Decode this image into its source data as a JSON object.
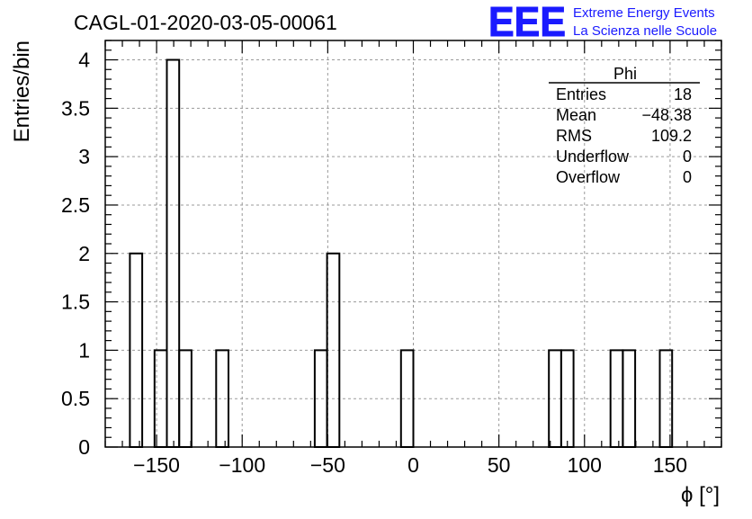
{
  "chart_data": {
    "type": "bar",
    "title": "CAGL-01-2020-03-05-00061",
    "xlabel": "ϕ [°]",
    "ylabel": "Entries/bin",
    "xlim": [
      -180,
      180
    ],
    "ylim": [
      0,
      4.2
    ],
    "grid": true,
    "bin_width": 7.2,
    "x_ticks": [
      -150,
      -100,
      -50,
      0,
      50,
      100,
      150
    ],
    "x_tick_labels": [
      "−150",
      "−100",
      "−50",
      "0",
      "50",
      "100",
      "150"
    ],
    "y_ticks": [
      0,
      0.5,
      1,
      1.5,
      2,
      2.5,
      3,
      3.5,
      4
    ],
    "y_tick_labels": [
      "0",
      "0.5",
      "1",
      "1.5",
      "2",
      "2.5",
      "3",
      "3.5",
      "4"
    ],
    "bins": [
      {
        "x_low": -165.6,
        "x_high": -158.4,
        "count": 2
      },
      {
        "x_low": -151.2,
        "x_high": -144.0,
        "count": 1
      },
      {
        "x_low": -144.0,
        "x_high": -136.8,
        "count": 4
      },
      {
        "x_low": -136.8,
        "x_high": -129.6,
        "count": 1
      },
      {
        "x_low": -115.2,
        "x_high": -108.0,
        "count": 1
      },
      {
        "x_low": -57.6,
        "x_high": -50.4,
        "count": 1
      },
      {
        "x_low": -50.4,
        "x_high": -43.2,
        "count": 2
      },
      {
        "x_low": -7.2,
        "x_high": 0.0,
        "count": 1
      },
      {
        "x_low": 79.2,
        "x_high": 86.4,
        "count": 1
      },
      {
        "x_low": 86.4,
        "x_high": 93.6,
        "count": 1
      },
      {
        "x_low": 115.2,
        "x_high": 122.4,
        "count": 1
      },
      {
        "x_low": 122.4,
        "x_high": 129.6,
        "count": 1
      },
      {
        "x_low": 144.0,
        "x_high": 151.2,
        "count": 1
      }
    ],
    "stats_box": {
      "name": "Phi",
      "rows": [
        {
          "label": "Entries",
          "value": "18"
        },
        {
          "label": "Mean",
          "value": "−48.38"
        },
        {
          "label": "RMS",
          "value": "109.2"
        },
        {
          "label": "Underflow",
          "value": "0"
        },
        {
          "label": "Overflow",
          "value": "0"
        }
      ]
    }
  },
  "logo": {
    "mark": "EEE",
    "line1": "Extreme Energy Events",
    "line2": "La Scienza nelle Scuole",
    "color": "#1a1aff"
  },
  "colors": {
    "histogram": "#000000",
    "grid": "#9a9a9a",
    "frame": "#000000"
  }
}
